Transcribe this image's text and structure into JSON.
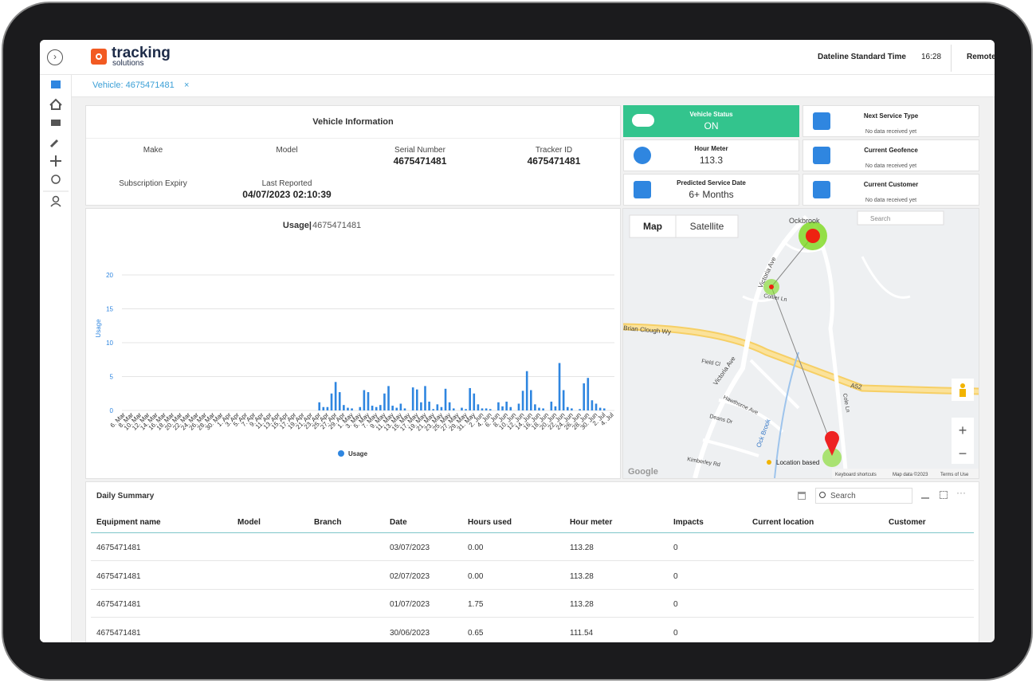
{
  "header": {
    "brand": "tracking",
    "brand_sub": "solutions",
    "timezone": "Dateline Standard Time",
    "time": "16:28",
    "menu": "Remote"
  },
  "tab": {
    "label": "Vehicle: 4675471481",
    "close": "×"
  },
  "vehicle_info": {
    "title": "Vehicle Information",
    "fields": [
      {
        "label": "Make",
        "value": null
      },
      {
        "label": "Model",
        "value": null
      },
      {
        "label": "Serial Number",
        "value": "4675471481"
      },
      {
        "label": "Tracker ID",
        "value": "4675471481"
      },
      {
        "label": "Subscription Expiry",
        "value": null
      },
      {
        "label": "Last Reported",
        "value": "04/07/2023 02:10:39"
      }
    ]
  },
  "cards": [
    {
      "title": "Vehicle Status",
      "value": "ON"
    },
    {
      "title": "Next Service Type",
      "value": "No data received yet"
    },
    {
      "title": "Hour Meter",
      "value": "113.3"
    },
    {
      "title": "Current Geofence",
      "value": "No data received yet"
    },
    {
      "title": "Predicted Service Date",
      "value": "6+ Months"
    },
    {
      "title": "Current Customer",
      "value": "No data received yet"
    }
  ],
  "chart_data": {
    "type": "bar",
    "title": "Usage|",
    "subtitle": "4675471481",
    "y_label": "Usage",
    "categories": [
      "6. Mar",
      null,
      "8. Mar",
      null,
      "10. Mar",
      null,
      "12. Mar",
      null,
      "14. Mar",
      null,
      "16. Mar",
      null,
      "18. Mar",
      null,
      "20. Mar",
      null,
      "22. Mar",
      null,
      "24. Mar",
      null,
      "26. Mar",
      null,
      "28. Mar",
      null,
      "30. Mar",
      null,
      "1. Apr",
      null,
      "3. Apr",
      null,
      "5. Apr",
      null,
      "7. Apr",
      null,
      "9. Apr",
      null,
      "11. Apr",
      null,
      "13. Apr",
      null,
      "15. Apr",
      null,
      "17. Apr",
      null,
      "19. Apr",
      null,
      "21. Apr",
      null,
      "23. Apr",
      null,
      "25. Apr",
      null,
      "27. Apr",
      null,
      "29. Apr",
      null,
      "1. May",
      null,
      "3. May",
      null,
      "5. May",
      null,
      "7. May",
      null,
      "9. May",
      null,
      "11. May",
      null,
      "13. May",
      null,
      "15. May",
      null,
      "17. May",
      null,
      "19. May",
      null,
      "21. May",
      null,
      "23. May",
      null,
      "25. May",
      null,
      "27. May",
      null,
      "29. May",
      null,
      "31. May",
      null,
      "2. Jun",
      null,
      "4. Jun",
      null,
      "6. Jun",
      null,
      "8. Jun",
      null,
      "10. Jun",
      null,
      "12. Jun",
      null,
      "14. Jun",
      null,
      "16. Jun",
      null,
      "18. Jun",
      null,
      "20. Jun",
      null,
      "22. Jun",
      null,
      "24. Jun",
      null,
      "26. Jun",
      null,
      "28. Jun",
      null,
      "30. Jun",
      null,
      "2. Jul",
      null,
      "4. Jul"
    ],
    "series": [
      {
        "name": "Usage",
        "color": "#2f86e0",
        "values": [
          0,
          0,
          0,
          0,
          0,
          0,
          0,
          0,
          0,
          0,
          0,
          0,
          0,
          0,
          0,
          0,
          0,
          0,
          0,
          0,
          0,
          0,
          0,
          0,
          0,
          0,
          0,
          0,
          0,
          0,
          0,
          0,
          0,
          0,
          0,
          0,
          0,
          0,
          0,
          0,
          0,
          0,
          0,
          0,
          0,
          0,
          0,
          0,
          1.2,
          0.5,
          0.5,
          2.5,
          4.2,
          2.7,
          0.8,
          0.4,
          0.3,
          0,
          0.5,
          3.0,
          2.7,
          0.7,
          0.5,
          0.8,
          2.5,
          3.6,
          0.7,
          0.4,
          1.0,
          0.3,
          0,
          3.4,
          3.1,
          1.2,
          3.6,
          1.3,
          0.2,
          0.9,
          0.5,
          3.2,
          1.2,
          0.3,
          0,
          0.4,
          0.2,
          3.3,
          2.5,
          0.9,
          0.3,
          0.3,
          0.2,
          0,
          1.2,
          0.6,
          1.3,
          0.5,
          0,
          1.0,
          2.9,
          5.8,
          3.0,
          0.9,
          0.4,
          0.3,
          0,
          1.3,
          0.6,
          7.0,
          3.0,
          0.5,
          0.3,
          0,
          0.2,
          4.0,
          4.8,
          1.5,
          1.0,
          0.4,
          0.3,
          0,
          0
        ]
      }
    ],
    "ylim": [
      0,
      20
    ],
    "yticks": [
      0,
      5,
      10,
      15,
      20
    ],
    "grid": true,
    "legend": "bottom"
  },
  "map": {
    "tabs": [
      "Map",
      "Satellite"
    ],
    "search": "Search",
    "labels": [
      "Ockbrook",
      "Victoria Ave",
      "Brian Clough Wy",
      "A52",
      "Field Cl",
      "Victoria Ave",
      "Hawthorne Ave",
      "Deans Dr",
      "Kimberley Rd",
      "Ock Brook",
      "Cole Ln",
      "Collier Ln"
    ],
    "legend": "Location based",
    "footer": [
      "Keyboard shortcuts",
      "Map data ©2023",
      "Terms of Use"
    ],
    "logo": "Google",
    "zoom": [
      "+",
      "−"
    ]
  },
  "table": {
    "title": "Daily Summary",
    "search": "Search",
    "columns": [
      "Equipment name",
      "Model",
      "Branch",
      "Date",
      "Hours used",
      "Hour meter",
      "Impacts",
      "Current location",
      "Customer"
    ],
    "rows": [
      [
        "4675471481",
        null,
        null,
        "03/07/2023",
        "0.00",
        "113.28",
        "0",
        null,
        null
      ],
      [
        "4675471481",
        null,
        null,
        "02/07/2023",
        "0.00",
        "113.28",
        "0",
        null,
        null
      ],
      [
        "4675471481",
        null,
        null,
        "01/07/2023",
        "1.75",
        "113.28",
        "0",
        null,
        null
      ],
      [
        "4675471481",
        null,
        null,
        "30/06/2023",
        "0.65",
        "111.54",
        "0",
        null,
        null
      ]
    ]
  }
}
